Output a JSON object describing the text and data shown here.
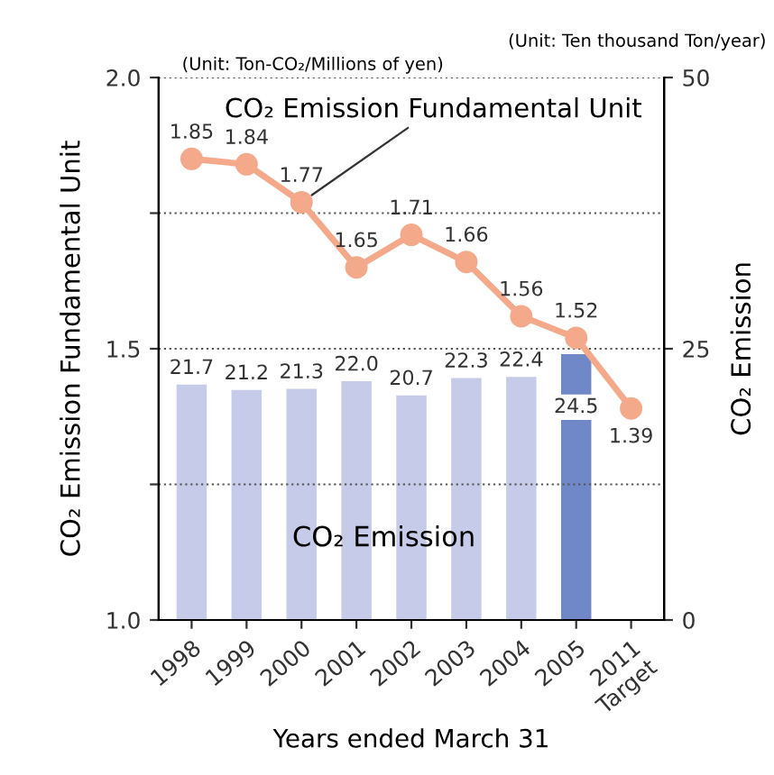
{
  "chart_data": {
    "type": "bar",
    "categories": [
      "1998",
      "1999",
      "2000",
      "2001",
      "2002",
      "2003",
      "2004",
      "2005",
      "2011\nTarget"
    ],
    "series": [
      {
        "name": "CO₂ Emission",
        "axis": "y2",
        "colors": [
          "#c5cbe9",
          "#c5cbe9",
          "#c5cbe9",
          "#c5cbe9",
          "#c5cbe9",
          "#c5cbe9",
          "#c5cbe9",
          "#7088c8",
          null
        ],
        "values": [
          21.7,
          21.2,
          21.3,
          22.0,
          20.7,
          22.3,
          22.4,
          24.5,
          null
        ],
        "value_labels": [
          "21.7",
          "21.2",
          "21.3",
          "22.0",
          "20.7",
          "22.3",
          "22.4",
          "24.5",
          null
        ]
      },
      {
        "name": "CO₂ Emission Fundamental Unit",
        "type": "line",
        "color": "#f4a98a",
        "marker": "circle",
        "values": [
          1.85,
          1.84,
          1.77,
          1.65,
          1.71,
          1.66,
          1.56,
          1.52,
          1.39
        ],
        "value_labels": [
          "1.85",
          "1.84",
          "1.77",
          "1.65",
          "1.71",
          "1.66",
          "1.56",
          "1.52",
          "1.39"
        ]
      }
    ],
    "xlabel": "Years ended March 31",
    "ylabel": "CO₂ Emission Fundamental Unit",
    "y2label": "CO₂ Emission",
    "ylim": [
      1.0,
      2.0
    ],
    "yticks": [
      {
        "value": 1.0,
        "label": "1.0"
      },
      {
        "value": 1.25,
        "label": null
      },
      1.5,
      {
        "value": 1.75,
        "label": null
      },
      {
        "value": 2.0,
        "label": "2.0"
      }
    ],
    "y2lim": [
      0,
      50
    ],
    "y2ticks": [
      0,
      25,
      50
    ],
    "grid": "y",
    "annotations": [
      "(Unit: Ton-CO₂/Millions of yen)",
      "(Unit: Ten thousand Ton/year)"
    ]
  }
}
